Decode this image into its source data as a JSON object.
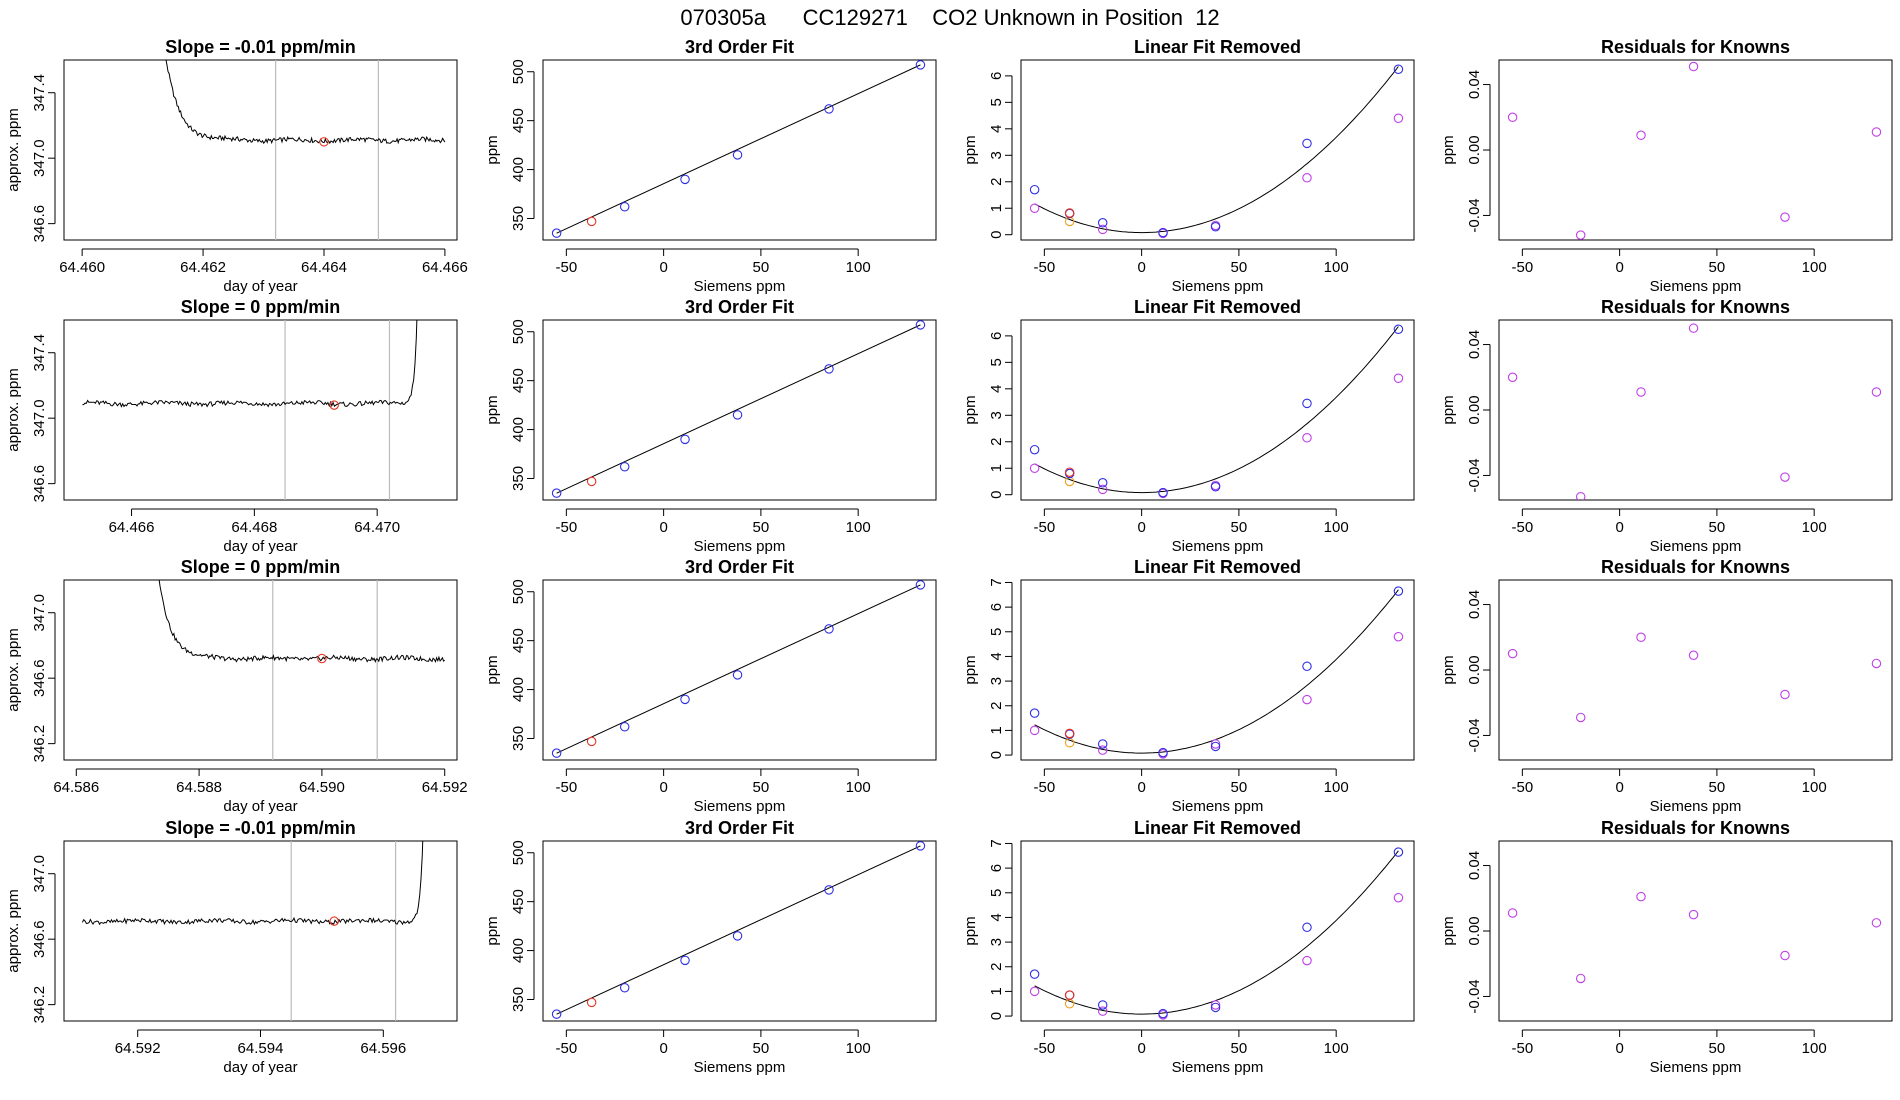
{
  "figure_title": "070305a      CC129271    CO2 Unknown in Position  12",
  "colors": {
    "trace": "#000000",
    "unknown_point": "#e8331f",
    "known_point": "#2f2fe6",
    "raw_linear_point": "#c040e8",
    "reference_point": "#f0a020",
    "residual_point": "#c040e8",
    "vline": "#bbbbbb"
  },
  "chart_data": [
    {
      "type": "line",
      "row": 0,
      "col": 0,
      "title": "Slope =  -0.01  ppm/min",
      "xlabel": "day of year",
      "ylabel": "approx. ppm",
      "xlim": [
        64.4597,
        64.4662
      ],
      "ylim": [
        346.5,
        347.6
      ],
      "xticks": [
        64.46,
        64.462,
        64.464,
        64.466
      ],
      "xtick_labels": [
        "64.460",
        "64.462",
        "64.464",
        "64.466"
      ],
      "yticks": [
        346.6,
        347.0,
        347.4
      ],
      "ytick_labels": [
        "346.6",
        "347.0",
        "347.4"
      ],
      "trace": {
        "start": 64.4611,
        "end": 64.466,
        "level": 347.11,
        "spike": "start",
        "spike_width": 0.0008
      },
      "vlines": [
        64.4632,
        64.4649
      ],
      "marker": {
        "x": 64.464,
        "y": 347.1
      }
    },
    {
      "type": "line",
      "row": 1,
      "col": 0,
      "title": "Slope =  0  ppm/min",
      "xlabel": "day of year",
      "ylabel": "approx. ppm",
      "xlim": [
        64.4649,
        64.4713
      ],
      "ylim": [
        346.5,
        347.6
      ],
      "xticks": [
        64.466,
        64.468,
        64.47
      ],
      "xtick_labels": [
        "64.466",
        "64.468",
        "64.470"
      ],
      "yticks": [
        346.6,
        347.0,
        347.4
      ],
      "ytick_labels": [
        "346.6",
        "347.0",
        "347.4"
      ],
      "trace": {
        "start": 64.4652,
        "end": 64.4707,
        "level": 347.09,
        "spike": "end",
        "spike_width": 0.0002
      },
      "vlines": [
        64.4685,
        64.4702
      ],
      "marker": {
        "x": 64.4693,
        "y": 347.08
      }
    },
    {
      "type": "line",
      "row": 2,
      "col": 0,
      "title": "Slope =  0  ppm/min",
      "xlabel": "day of year",
      "ylabel": "approx. ppm",
      "xlim": [
        64.5858,
        64.5922
      ],
      "ylim": [
        346.1,
        347.2
      ],
      "xticks": [
        64.586,
        64.588,
        64.59,
        64.592
      ],
      "xtick_labels": [
        "64.586",
        "64.588",
        "64.590",
        "64.592"
      ],
      "yticks": [
        346.2,
        346.6,
        347.0
      ],
      "ytick_labels": [
        "346.2",
        "346.6",
        "347.0"
      ],
      "trace": {
        "start": 64.5871,
        "end": 64.592,
        "level": 346.72,
        "spike": "start",
        "spike_width": 0.0007
      },
      "vlines": [
        64.5892,
        64.5909
      ],
      "marker": {
        "x": 64.59,
        "y": 346.72
      }
    },
    {
      "type": "line",
      "row": 3,
      "col": 0,
      "title": "Slope =  -0.01  ppm/min",
      "xlabel": "day of year",
      "ylabel": "approx. ppm",
      "xlim": [
        64.5908,
        64.5972
      ],
      "ylim": [
        346.1,
        347.2
      ],
      "xticks": [
        64.592,
        64.594,
        64.596
      ],
      "xtick_labels": [
        "64.592",
        "64.594",
        "64.596"
      ],
      "yticks": [
        346.2,
        346.6,
        347.0
      ],
      "ytick_labels": [
        "346.2",
        "346.6",
        "347.0"
      ],
      "trace": {
        "start": 64.5911,
        "end": 64.5967,
        "level": 346.71,
        "spike": "end",
        "spike_width": 0.0002
      },
      "vlines": [
        64.5945,
        64.5962
      ],
      "marker": {
        "x": 64.5952,
        "y": 346.71
      }
    },
    {
      "type": "scatter",
      "row": 0,
      "col": 1,
      "title": "3rd Order Fit",
      "xlabel": "Siemens ppm",
      "ylabel": "ppm",
      "xlim": [
        -62,
        140
      ],
      "ylim": [
        328,
        512
      ],
      "xticks": [
        -50,
        0,
        50,
        100
      ],
      "xtick_labels": [
        "-50",
        "0",
        "50",
        "100"
      ],
      "yticks": [
        350,
        400,
        450,
        500
      ],
      "ytick_labels": [
        "350",
        "400",
        "450",
        "500"
      ],
      "fit_line": {
        "x1": -55,
        "y1": 335,
        "x2": 132,
        "y2": 507
      },
      "points_known": [
        [
          -55,
          335
        ],
        [
          -20,
          362
        ],
        [
          11,
          390
        ],
        [
          38,
          415
        ],
        [
          85,
          462
        ],
        [
          132,
          507
        ]
      ],
      "points_unknown": [
        [
          -37,
          347
        ]
      ]
    },
    {
      "type": "scatter",
      "row": 1,
      "col": 1,
      "title": "3rd Order Fit",
      "xlabel": "Siemens ppm",
      "ylabel": "ppm",
      "xlim": [
        -62,
        140
      ],
      "ylim": [
        328,
        512
      ],
      "xticks": [
        -50,
        0,
        50,
        100
      ],
      "xtick_labels": [
        "-50",
        "0",
        "50",
        "100"
      ],
      "yticks": [
        350,
        400,
        450,
        500
      ],
      "ytick_labels": [
        "350",
        "400",
        "450",
        "500"
      ],
      "fit_line": {
        "x1": -55,
        "y1": 335,
        "x2": 132,
        "y2": 507
      },
      "points_known": [
        [
          -55,
          335
        ],
        [
          -20,
          362
        ],
        [
          11,
          390
        ],
        [
          38,
          415
        ],
        [
          85,
          462
        ],
        [
          132,
          507
        ]
      ],
      "points_unknown": [
        [
          -37,
          347
        ]
      ]
    },
    {
      "type": "scatter",
      "row": 2,
      "col": 1,
      "title": "3rd Order Fit",
      "xlabel": "Siemens ppm",
      "ylabel": "ppm",
      "xlim": [
        -62,
        140
      ],
      "ylim": [
        328,
        512
      ],
      "xticks": [
        -50,
        0,
        50,
        100
      ],
      "xtick_labels": [
        "-50",
        "0",
        "50",
        "100"
      ],
      "yticks": [
        350,
        400,
        450,
        500
      ],
      "ytick_labels": [
        "350",
        "400",
        "450",
        "500"
      ],
      "fit_line": {
        "x1": -55,
        "y1": 335,
        "x2": 132,
        "y2": 507
      },
      "points_known": [
        [
          -55,
          335
        ],
        [
          -20,
          362
        ],
        [
          11,
          390
        ],
        [
          38,
          415
        ],
        [
          85,
          462
        ],
        [
          132,
          507
        ]
      ],
      "points_unknown": [
        [
          -37,
          347
        ]
      ]
    },
    {
      "type": "scatter",
      "row": 3,
      "col": 1,
      "title": "3rd Order Fit",
      "xlabel": "Siemens ppm",
      "ylabel": "ppm",
      "xlim": [
        -62,
        140
      ],
      "ylim": [
        328,
        512
      ],
      "xticks": [
        -50,
        0,
        50,
        100
      ],
      "xtick_labels": [
        "-50",
        "0",
        "50",
        "100"
      ],
      "yticks": [
        350,
        400,
        450,
        500
      ],
      "ytick_labels": [
        "350",
        "400",
        "450",
        "500"
      ],
      "fit_line": {
        "x1": -55,
        "y1": 335,
        "x2": 132,
        "y2": 507
      },
      "points_known": [
        [
          -55,
          335
        ],
        [
          -20,
          362
        ],
        [
          11,
          390
        ],
        [
          38,
          415
        ],
        [
          85,
          462
        ],
        [
          132,
          507
        ]
      ],
      "points_unknown": [
        [
          -37,
          347
        ]
      ]
    },
    {
      "type": "scatter",
      "row": 0,
      "col": 2,
      "title": "Linear Fit Removed",
      "xlabel": "Siemens ppm",
      "ylabel": "ppm",
      "xlim": [
        -62,
        140
      ],
      "ylim": [
        -0.2,
        6.6
      ],
      "xticks": [
        -50,
        0,
        50,
        100
      ],
      "xtick_labels": [
        "-50",
        "0",
        "50",
        "100"
      ],
      "yticks": [
        0,
        1,
        2,
        3,
        4,
        5,
        6
      ],
      "ytick_labels": [
        "0",
        "1",
        "2",
        "3",
        "4",
        "5",
        "6"
      ],
      "curve": {
        "a": 0.00036,
        "b": 0.0,
        "c": 0.08,
        "x_from": -55,
        "x_to": 132
      },
      "points_fitted": [
        [
          -55,
          1.7
        ],
        [
          -37,
          0.8
        ],
        [
          -20,
          0.45
        ],
        [
          11,
          0.08
        ],
        [
          38,
          0.3
        ],
        [
          85,
          3.45
        ],
        [
          132,
          6.25
        ]
      ],
      "points_raw": [
        [
          -55,
          1.0
        ],
        [
          -20,
          0.2
        ],
        [
          11,
          0.05
        ],
        [
          38,
          0.35
        ],
        [
          85,
          2.15
        ],
        [
          132,
          4.4
        ]
      ],
      "points_unknown": [
        [
          -37,
          0.82
        ]
      ],
      "points_reference": [
        [
          -37,
          0.5
        ]
      ]
    },
    {
      "type": "scatter",
      "row": 1,
      "col": 2,
      "title": "Linear Fit Removed",
      "xlabel": "Siemens ppm",
      "ylabel": "ppm",
      "xlim": [
        -62,
        140
      ],
      "ylim": [
        -0.2,
        6.6
      ],
      "xticks": [
        -50,
        0,
        50,
        100
      ],
      "xtick_labels": [
        "-50",
        "0",
        "50",
        "100"
      ],
      "yticks": [
        0,
        1,
        2,
        3,
        4,
        5,
        6
      ],
      "ytick_labels": [
        "0",
        "1",
        "2",
        "3",
        "4",
        "5",
        "6"
      ],
      "curve": {
        "a": 0.00036,
        "b": 0.0,
        "c": 0.08,
        "x_from": -55,
        "x_to": 132
      },
      "points_fitted": [
        [
          -55,
          1.7
        ],
        [
          -37,
          0.8
        ],
        [
          -20,
          0.45
        ],
        [
          11,
          0.08
        ],
        [
          38,
          0.3
        ],
        [
          85,
          3.45
        ],
        [
          132,
          6.25
        ]
      ],
      "points_raw": [
        [
          -55,
          1.0
        ],
        [
          -20,
          0.2
        ],
        [
          11,
          0.05
        ],
        [
          38,
          0.35
        ],
        [
          85,
          2.15
        ],
        [
          132,
          4.4
        ]
      ],
      "points_unknown": [
        [
          -37,
          0.85
        ]
      ],
      "points_reference": [
        [
          -37,
          0.5
        ]
      ]
    },
    {
      "type": "scatter",
      "row": 2,
      "col": 2,
      "title": "Linear Fit Removed",
      "xlabel": "Siemens ppm",
      "ylabel": "ppm",
      "xlim": [
        -62,
        140
      ],
      "ylim": [
        -0.2,
        7.1
      ],
      "xticks": [
        -50,
        0,
        50,
        100
      ],
      "xtick_labels": [
        "-50",
        "0",
        "50",
        "100"
      ],
      "yticks": [
        0,
        1,
        2,
        3,
        4,
        5,
        6,
        7
      ],
      "ytick_labels": [
        "0",
        "1",
        "2",
        "3",
        "4",
        "5",
        "6",
        "7"
      ],
      "curve": {
        "a": 0.00038,
        "b": 0.0,
        "c": 0.08,
        "x_from": -55,
        "x_to": 132
      },
      "points_fitted": [
        [
          -55,
          1.7
        ],
        [
          -37,
          0.85
        ],
        [
          -20,
          0.45
        ],
        [
          11,
          0.1
        ],
        [
          38,
          0.35
        ],
        [
          85,
          3.6
        ],
        [
          132,
          6.65
        ]
      ],
      "points_raw": [
        [
          -55,
          1.0
        ],
        [
          -20,
          0.2
        ],
        [
          11,
          0.05
        ],
        [
          38,
          0.45
        ],
        [
          85,
          2.25
        ],
        [
          132,
          4.8
        ]
      ],
      "points_unknown": [
        [
          -37,
          0.88
        ]
      ],
      "points_reference": [
        [
          -37,
          0.5
        ]
      ]
    },
    {
      "type": "scatter",
      "row": 3,
      "col": 2,
      "title": "Linear Fit Removed",
      "xlabel": "Siemens ppm",
      "ylabel": "ppm",
      "xlim": [
        -62,
        140
      ],
      "ylim": [
        -0.2,
        7.1
      ],
      "xticks": [
        -50,
        0,
        50,
        100
      ],
      "xtick_labels": [
        "-50",
        "0",
        "50",
        "100"
      ],
      "yticks": [
        0,
        1,
        2,
        3,
        4,
        5,
        6,
        7
      ],
      "ytick_labels": [
        "0",
        "1",
        "2",
        "3",
        "4",
        "5",
        "6",
        "7"
      ],
      "curve": {
        "a": 0.00038,
        "b": 0.0,
        "c": 0.08,
        "x_from": -55,
        "x_to": 132
      },
      "points_fitted": [
        [
          -55,
          1.7
        ],
        [
          -37,
          0.85
        ],
        [
          -20,
          0.45
        ],
        [
          11,
          0.1
        ],
        [
          38,
          0.35
        ],
        [
          85,
          3.6
        ],
        [
          132,
          6.65
        ]
      ],
      "points_raw": [
        [
          -55,
          1.0
        ],
        [
          -20,
          0.2
        ],
        [
          11,
          0.05
        ],
        [
          38,
          0.45
        ],
        [
          85,
          2.25
        ],
        [
          132,
          4.8
        ]
      ],
      "points_unknown": [
        [
          -37,
          0.85
        ]
      ],
      "points_reference": [
        [
          -37,
          0.5
        ]
      ]
    },
    {
      "type": "scatter",
      "row": 0,
      "col": 3,
      "title": "Residuals for Knowns",
      "xlabel": "Siemens ppm",
      "ylabel": "ppm",
      "xlim": [
        -62,
        140
      ],
      "ylim": [
        -0.055,
        0.055
      ],
      "xticks": [
        -50,
        0,
        50,
        100
      ],
      "xtick_labels": [
        "-50",
        "0",
        "50",
        "100"
      ],
      "yticks": [
        -0.04,
        0.0,
        0.04
      ],
      "ytick_labels": [
        "-0.04",
        "0.00",
        "0.04"
      ],
      "points_residual": [
        [
          -55,
          0.02
        ],
        [
          -20,
          -0.052
        ],
        [
          11,
          0.009
        ],
        [
          38,
          0.051
        ],
        [
          85,
          -0.041
        ],
        [
          132,
          0.011
        ]
      ]
    },
    {
      "type": "scatter",
      "row": 1,
      "col": 3,
      "title": "Residuals for Knowns",
      "xlabel": "Siemens ppm",
      "ylabel": "ppm",
      "xlim": [
        -62,
        140
      ],
      "ylim": [
        -0.055,
        0.055
      ],
      "xticks": [
        -50,
        0,
        50,
        100
      ],
      "xtick_labels": [
        "-50",
        "0",
        "50",
        "100"
      ],
      "yticks": [
        -0.04,
        0.0,
        0.04
      ],
      "ytick_labels": [
        "-0.04",
        "0.00",
        "0.04"
      ],
      "points_residual": [
        [
          -55,
          0.02
        ],
        [
          -20,
          -0.053
        ],
        [
          11,
          0.011
        ],
        [
          38,
          0.05
        ],
        [
          85,
          -0.041
        ],
        [
          132,
          0.011
        ]
      ]
    },
    {
      "type": "scatter",
      "row": 2,
      "col": 3,
      "title": "Residuals for Knowns",
      "xlabel": "Siemens ppm",
      "ylabel": "ppm",
      "xlim": [
        -62,
        140
      ],
      "ylim": [
        -0.055,
        0.055
      ],
      "xticks": [
        -50,
        0,
        50,
        100
      ],
      "xtick_labels": [
        "-50",
        "0",
        "50",
        "100"
      ],
      "yticks": [
        -0.04,
        0.0,
        0.04
      ],
      "ytick_labels": [
        "-0.04",
        "0.00",
        "0.04"
      ],
      "points_residual": [
        [
          -55,
          0.01
        ],
        [
          -20,
          -0.029
        ],
        [
          11,
          0.02
        ],
        [
          38,
          0.009
        ],
        [
          85,
          -0.015
        ],
        [
          132,
          0.004
        ]
      ]
    },
    {
      "type": "scatter",
      "row": 3,
      "col": 3,
      "title": "Residuals for Knowns",
      "xlabel": "Siemens ppm",
      "ylabel": "ppm",
      "xlim": [
        -62,
        140
      ],
      "ylim": [
        -0.055,
        0.055
      ],
      "xticks": [
        -50,
        0,
        50,
        100
      ],
      "xtick_labels": [
        "-50",
        "0",
        "50",
        "100"
      ],
      "yticks": [
        -0.04,
        0.0,
        0.04
      ],
      "ytick_labels": [
        "-0.04",
        "0.00",
        "0.04"
      ],
      "points_residual": [
        [
          -55,
          0.011
        ],
        [
          -20,
          -0.029
        ],
        [
          11,
          0.021
        ],
        [
          38,
          0.01
        ],
        [
          85,
          -0.015
        ],
        [
          132,
          0.005
        ]
      ]
    }
  ]
}
